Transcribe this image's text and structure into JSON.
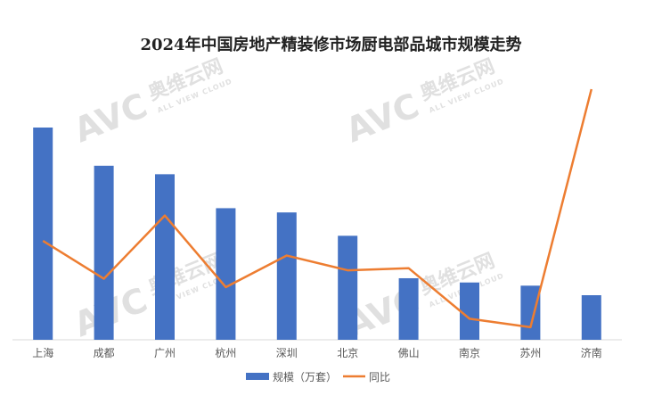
{
  "chart_data": {
    "type": "bar",
    "title": "2024年中国房地产精装修市场厨电部品城市规模走势",
    "categories": [
      "上海",
      "成都",
      "广州",
      "杭州",
      "深圳",
      "北京",
      "佛山",
      "南京",
      "苏州",
      "济南"
    ],
    "series": [
      {
        "name": "规模（万套）",
        "type": "bar",
        "axis": "left",
        "color": "#4472C4",
        "values": [
          100,
          82,
          78,
          62,
          60,
          49,
          29,
          27,
          25.5,
          21
        ]
      },
      {
        "name": "同比",
        "type": "line",
        "axis": "right",
        "color": "#ED7D31",
        "values": [
          47,
          29,
          59,
          25,
          40,
          33,
          34,
          10,
          6,
          119
        ]
      }
    ],
    "ylim": [
      0,
      100
    ],
    "y2lim": [
      0,
      119
    ],
    "grid": false,
    "legend_position": "bottom"
  },
  "watermark": {
    "brand": "AVC",
    "cn": "奥维云网",
    "en": "ALL VIEW CLOUD",
    "color": "#c8c8c8"
  }
}
